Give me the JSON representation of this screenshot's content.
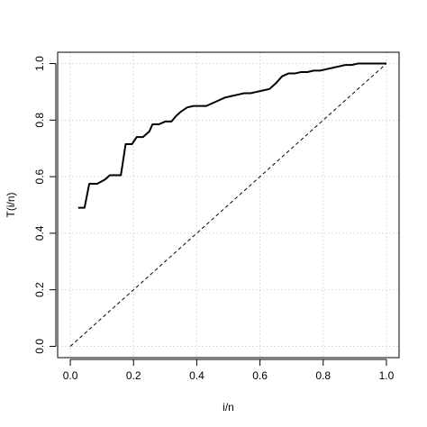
{
  "chart_data": {
    "type": "line",
    "title": "",
    "xlabel": "i/n",
    "ylabel": "T(i/n)",
    "xlim": [
      0.0,
      1.0
    ],
    "ylim": [
      0.0,
      1.0
    ],
    "grid": true,
    "x_ticks": [
      0.0,
      0.2,
      0.4,
      0.6,
      0.8,
      1.0
    ],
    "x_tick_labels": [
      "0.0",
      "0.2",
      "0.4",
      "0.6",
      "0.8",
      "1.0"
    ],
    "y_ticks": [
      0.0,
      0.2,
      0.4,
      0.6,
      0.8,
      1.0
    ],
    "y_tick_labels": [
      "0.0",
      "0.2",
      "0.4",
      "0.6",
      "0.8",
      "1.0"
    ],
    "series": [
      {
        "style": "solid",
        "color": "#000000",
        "x": [
          0.025,
          0.045,
          0.06,
          0.085,
          0.11,
          0.125,
          0.16,
          0.175,
          0.195,
          0.21,
          0.23,
          0.25,
          0.26,
          0.28,
          0.3,
          0.32,
          0.335,
          0.35,
          0.37,
          0.39,
          0.41,
          0.43,
          0.45,
          0.47,
          0.49,
          0.51,
          0.53,
          0.55,
          0.57,
          0.59,
          0.61,
          0.63,
          0.65,
          0.67,
          0.69,
          0.71,
          0.73,
          0.75,
          0.77,
          0.79,
          0.81,
          0.83,
          0.85,
          0.87,
          0.89,
          0.91,
          0.93,
          0.95,
          0.97,
          0.99,
          1.0
        ],
        "y": [
          0.49,
          0.49,
          0.575,
          0.575,
          0.59,
          0.605,
          0.605,
          0.715,
          0.715,
          0.74,
          0.74,
          0.76,
          0.785,
          0.785,
          0.795,
          0.795,
          0.815,
          0.83,
          0.845,
          0.85,
          0.85,
          0.85,
          0.86,
          0.87,
          0.88,
          0.885,
          0.89,
          0.895,
          0.895,
          0.9,
          0.905,
          0.91,
          0.93,
          0.955,
          0.965,
          0.965,
          0.97,
          0.97,
          0.975,
          0.975,
          0.98,
          0.985,
          0.99,
          0.995,
          0.995,
          1.0,
          1.0,
          1.0,
          1.0,
          1.0,
          1.0
        ]
      },
      {
        "style": "dashed",
        "color": "#000000",
        "x": [
          0.0,
          1.0
        ],
        "y": [
          0.0,
          1.0
        ]
      }
    ]
  }
}
